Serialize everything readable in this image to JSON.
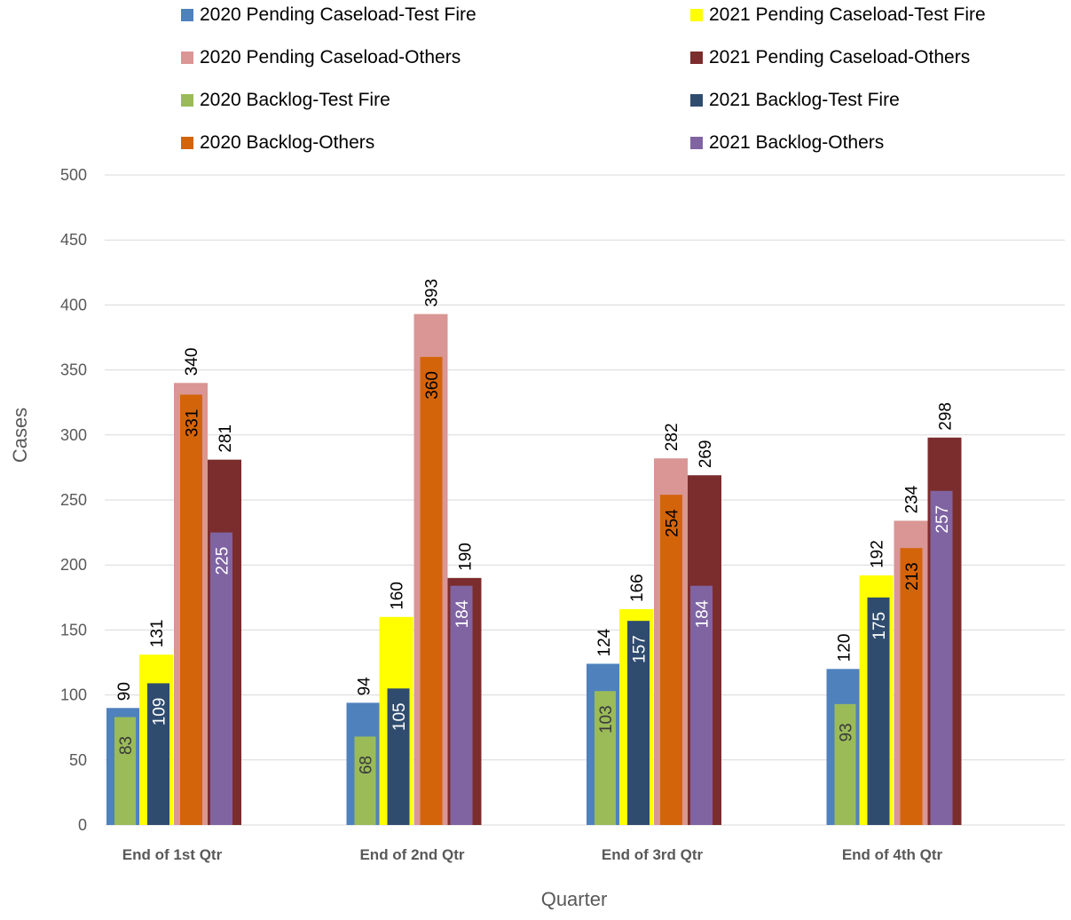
{
  "chart_data": {
    "type": "bar",
    "categories": [
      "End of 1st Qtr",
      "End of 2nd Qtr",
      "End of 3rd Qtr",
      "End of 4th Qtr"
    ],
    "xlabel": "Quarter",
    "ylabel": "Cases",
    "ylim": [
      0,
      500
    ],
    "yticks": [
      0,
      50,
      100,
      150,
      200,
      250,
      300,
      350,
      400,
      450,
      500
    ],
    "grid": true,
    "legend_position": "top",
    "series": [
      {
        "name": "2020 Pending Caseload-Test Fire",
        "color": "#4F81BD",
        "values": [
          90,
          94,
          124,
          120
        ]
      },
      {
        "name": "2021 Pending Caseload-Test Fire",
        "color": "#FFFF00",
        "values": [
          131,
          160,
          166,
          192
        ]
      },
      {
        "name": "2020 Pending Caseload-Others",
        "color": "#D99694",
        "values": [
          340,
          393,
          282,
          234
        ]
      },
      {
        "name": "2021 Pending Caseload-Others",
        "color": "#7B2C2C",
        "values": [
          281,
          190,
          269,
          298
        ]
      },
      {
        "name": "2020 Backlog-Test Fire",
        "color": "#9BBB59",
        "values": [
          83,
          68,
          103,
          93
        ]
      },
      {
        "name": "2021 Backlog-Test Fire",
        "color": "#2F4C6F",
        "values": [
          109,
          105,
          157,
          175
        ]
      },
      {
        "name": "2020 Backlog-Others",
        "color": "#D4640A",
        "values": [
          331,
          360,
          254,
          213
        ]
      },
      {
        "name": "2021 Backlog-Others",
        "color": "#8064A2",
        "values": [
          225,
          184,
          184,
          257
        ]
      }
    ]
  }
}
